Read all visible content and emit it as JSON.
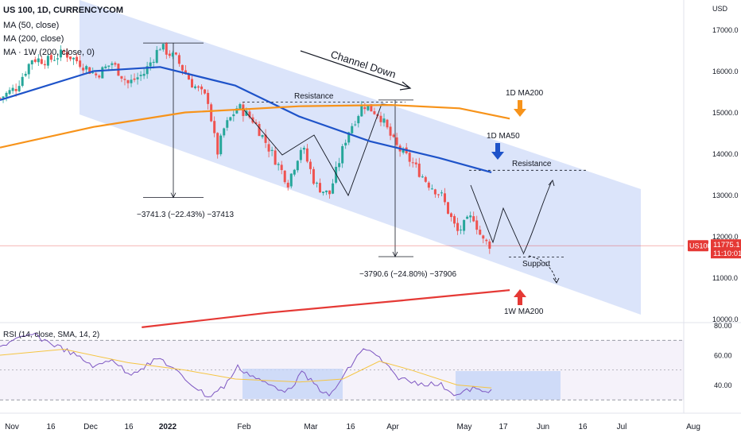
{
  "header": {
    "symbol_line": "US 100, 1D, CURRENCYCOM",
    "indicators": [
      "MA (50, close)",
      "MA (200, close)",
      "MA · 1W (200, close, 0)"
    ],
    "currency": "USD"
  },
  "price_label": {
    "symbol": "US100",
    "last_price": "11775.1",
    "countdown": "11:10:01",
    "color": "#e53935"
  },
  "annotations": {
    "channel": "Channel Down",
    "resistance_top": "Resistance",
    "resistance_right": "Resistance",
    "support": "Support",
    "ma200_1d": "1D MA200",
    "ma50_1d": "1D MA50",
    "ma200_1w": "1W MA200",
    "drop_1": "−3741.3 (−22.43%) −37413",
    "drop_2": "−3790.6 (−24.80%) −37906"
  },
  "colors": {
    "ma50": "#1e53c9",
    "ma200": "#f7931a",
    "ma200w": "#e53935",
    "channel_fill": "#c5d4f7",
    "candle_up": "#26a69a",
    "candle_down": "#ef5350",
    "rsi": "#7e57c2",
    "rsi_sma": "#f5c542"
  },
  "chart_data": [
    {
      "type": "candlestick",
      "title": "US 100, 1D, CURRENCYCOM",
      "y_axis": {
        "unit": "USD",
        "range": [
          9800,
          18000
        ],
        "ticks": [
          10000,
          11000,
          12000,
          13000,
          14000,
          15000,
          16000,
          17000
        ],
        "tick_labels": [
          "10000.0",
          "11000.0",
          "12000.0",
          "13000.0",
          "14000.0",
          "15000.0",
          "16000.0",
          "17000.0"
        ]
      },
      "x_axis": {
        "tick_labels": [
          "Nov",
          "16",
          "Dec",
          "16",
          "2022",
          "Feb",
          "Mar",
          "16",
          "Apr",
          "May",
          "17",
          "Jun",
          "16",
          "Jul",
          "Aug"
        ]
      },
      "price_path": [
        [
          "2021-10-21",
          15350
        ],
        [
          "2021-10-28",
          15600
        ],
        [
          "2021-11-04",
          16300
        ],
        [
          "2021-11-11",
          16250
        ],
        [
          "2021-11-18",
          16450
        ],
        [
          "2021-11-25",
          16200
        ],
        [
          "2021-12-02",
          15900
        ],
        [
          "2021-12-09",
          16200
        ],
        [
          "2021-12-16",
          15700
        ],
        [
          "2021-12-23",
          15950
        ],
        [
          "2021-12-30",
          16600
        ],
        [
          "2022-01-06",
          16300
        ],
        [
          "2022-01-13",
          15700
        ],
        [
          "2022-01-20",
          15300
        ],
        [
          "2022-01-24",
          14000
        ],
        [
          "2022-01-27",
          14600
        ],
        [
          "2022-02-02",
          15150
        ],
        [
          "2022-02-09",
          14800
        ],
        [
          "2022-02-14",
          14300
        ],
        [
          "2022-02-24",
          13300
        ],
        [
          "2022-03-02",
          14200
        ],
        [
          "2022-03-08",
          13250
        ],
        [
          "2022-03-14",
          13000
        ],
        [
          "2022-03-22",
          14500
        ],
        [
          "2022-03-29",
          15200
        ],
        [
          "2022-04-05",
          14950
        ],
        [
          "2022-04-12",
          14200
        ],
        [
          "2022-04-19",
          13800
        ],
        [
          "2022-04-26",
          13300
        ],
        [
          "2022-05-02",
          13000
        ],
        [
          "2022-05-09",
          12100
        ],
        [
          "2022-05-16",
          12500
        ],
        [
          "2022-05-20",
          11900
        ],
        [
          "2022-05-24",
          11775
        ]
      ],
      "moving_averages": [
        {
          "name": "MA (50, close)",
          "values": [
            [
              "2021-10-21",
              15300
            ],
            [
              "2021-12-01",
              16000
            ],
            [
              "2021-12-30",
              16100
            ],
            [
              "2022-02-01",
              15650
            ],
            [
              "2022-03-01",
              14900
            ],
            [
              "2022-04-01",
              14300
            ],
            [
              "2022-05-01",
              13900
            ],
            [
              "2022-05-24",
              13550
            ]
          ]
        },
        {
          "name": "MA (200, close)",
          "values": [
            [
              "2021-10-21",
              14150
            ],
            [
              "2021-12-01",
              14650
            ],
            [
              "2022-01-10",
              15000
            ],
            [
              "2022-03-01",
              15150
            ],
            [
              "2022-04-10",
              15180
            ],
            [
              "2022-05-10",
              15100
            ],
            [
              "2022-06-01",
              14850
            ]
          ]
        },
        {
          "name": "MA · 1W (200, close, 0)",
          "values": [
            [
              "2021-12-22",
              9800
            ],
            [
              "2022-02-15",
              10150
            ],
            [
              "2022-04-15",
              10450
            ],
            [
              "2022-06-01",
              10700
            ]
          ]
        }
      ],
      "drawings": {
        "drop_1": {
          "from_price": 16680,
          "to_price": 12940,
          "label": "−3741.3 (−22.43%) −37413"
        },
        "drop_2": {
          "from_price": 15300,
          "to_price": 11510,
          "label": "−3790.6 (−24.80%) −37906"
        },
        "resistance_top": 15250,
        "resistance_right": 13600,
        "support": 11500
      }
    },
    {
      "type": "line",
      "title": "RSI (14, close, SMA, 14, 2)",
      "y_axis": {
        "ticks": [
          40,
          60,
          80
        ],
        "tick_labels": [
          "40.00",
          "60.00",
          "80.00"
        ],
        "range": [
          20,
          82
        ],
        "bands": [
          30,
          70
        ]
      },
      "series": [
        {
          "name": "RSI (14, close, SMA, 14, 2)",
          "values": [
            [
              "2021-10-21",
              66
            ],
            [
              "2021-11-04",
              74
            ],
            [
              "2021-11-18",
              64
            ],
            [
              "2021-12-02",
              52
            ],
            [
              "2021-12-09",
              58
            ],
            [
              "2021-12-16",
              47
            ],
            [
              "2021-12-30",
              58
            ],
            [
              "2022-01-10",
              44
            ],
            [
              "2022-01-20",
              32
            ],
            [
              "2022-01-27",
              39
            ],
            [
              "2022-02-02",
              52
            ],
            [
              "2022-02-14",
              41
            ],
            [
              "2022-02-24",
              36
            ],
            [
              "2022-03-02",
              48
            ],
            [
              "2022-03-14",
              32
            ],
            [
              "2022-03-29",
              65
            ],
            [
              "2022-04-05",
              58
            ],
            [
              "2022-04-12",
              46
            ],
            [
              "2022-04-19",
              42
            ],
            [
              "2022-05-02",
              40
            ],
            [
              "2022-05-09",
              33
            ],
            [
              "2022-05-16",
              38
            ],
            [
              "2022-05-20",
              35
            ],
            [
              "2022-05-24",
              37
            ]
          ]
        },
        {
          "name": "SMA",
          "values": [
            [
              "2021-10-21",
              60
            ],
            [
              "2021-11-18",
              64
            ],
            [
              "2021-12-16",
              55
            ],
            [
              "2022-01-10",
              50
            ],
            [
              "2022-02-01",
              44
            ],
            [
              "2022-03-01",
              42
            ],
            [
              "2022-03-20",
              44
            ],
            [
              "2022-04-05",
              56
            ],
            [
              "2022-04-19",
              50
            ],
            [
              "2022-05-09",
              40
            ],
            [
              "2022-05-24",
              38
            ]
          ]
        }
      ]
    }
  ]
}
